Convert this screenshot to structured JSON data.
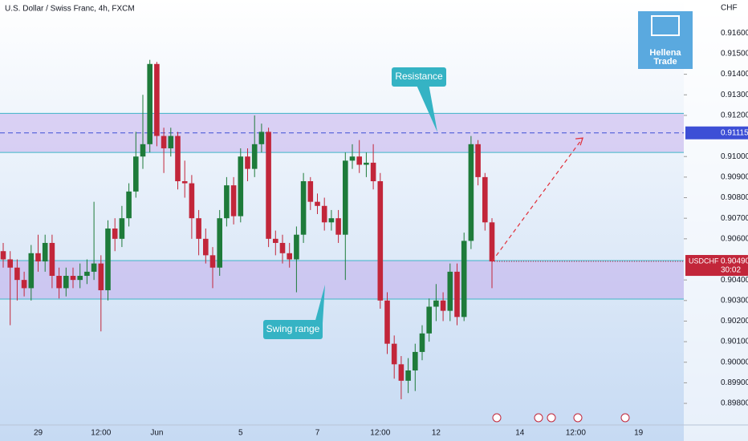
{
  "chart_data": {
    "type": "candlestick",
    "title": "U.S. Dollar / Swiss Franc, 4h, FXCM",
    "currency": "CHF",
    "logo": [
      "Hellena",
      "Trade"
    ],
    "categories": [
      null,
      null,
      null,
      null,
      null,
      "29",
      null,
      null,
      null,
      null,
      null,
      null,
      null,
      null,
      "12:00",
      null,
      null,
      null,
      null,
      null,
      null,
      null,
      "Jun",
      null,
      null,
      null,
      null,
      null,
      null,
      null,
      null,
      null,
      null,
      null,
      "5",
      null,
      null,
      null,
      null,
      null,
      null,
      null,
      null,
      null,
      null,
      "7",
      null,
      null,
      null,
      null,
      null,
      null,
      null,
      null,
      "12:00",
      null,
      null,
      null,
      null,
      null,
      null,
      null,
      "12",
      null,
      null,
      null,
      null,
      null,
      null,
      null,
      null,
      null,
      null,
      null,
      "14",
      null,
      null,
      null,
      null,
      null,
      null,
      null,
      "12:00",
      null,
      null,
      null,
      null,
      null,
      null,
      null,
      null,
      "19",
      null,
      null,
      null,
      null,
      null
    ],
    "series": [
      {
        "name": "USDCHF",
        "up_color": "#1e7b3a",
        "down_color": "#c2263a",
        "open": [
          0.9054,
          0.905,
          0.9046,
          0.904,
          0.9036,
          0.9053,
          0.9049,
          0.9058,
          0.9042,
          0.9036,
          0.9042,
          0.904,
          0.9042,
          0.9044,
          0.9048,
          0.9035,
          0.9065,
          0.906,
          0.907,
          0.9083,
          0.91,
          0.9106,
          0.9145,
          0.911,
          0.9104,
          0.911,
          0.9088,
          0.9087,
          0.907,
          0.906,
          0.9052,
          0.9046,
          0.907,
          0.9086,
          0.9071,
          0.91,
          0.9094,
          0.9106,
          0.9112,
          0.906,
          0.9058,
          0.9053,
          0.905,
          0.9062,
          0.9088,
          0.9078,
          0.9076,
          0.9068,
          0.907,
          0.9062,
          0.9098,
          0.91,
          0.9096,
          0.9097,
          0.9088,
          0.903,
          0.9009,
          0.8999,
          0.8991,
          0.8996,
          0.9005,
          0.9014,
          0.9027,
          0.903,
          0.9025,
          0.9044,
          0.9022,
          0.9059,
          0.9106,
          0.909,
          0.9068,
          null,
          null,
          null,
          null,
          null,
          null,
          null,
          null,
          null,
          null,
          null,
          null,
          null,
          null,
          null,
          null,
          null,
          null,
          null,
          null,
          null,
          null,
          null,
          null,
          null,
          null
        ],
        "high": [
          0.9058,
          0.9054,
          0.905,
          0.9044,
          0.9057,
          0.9062,
          0.9062,
          0.9062,
          0.9046,
          0.9046,
          0.9046,
          0.9048,
          0.905,
          0.9078,
          0.9052,
          0.9069,
          0.907,
          0.9076,
          0.9087,
          0.9112,
          0.913,
          0.9147,
          0.9146,
          0.9114,
          0.9114,
          0.9112,
          0.9098,
          0.9091,
          0.9074,
          0.9065,
          0.9056,
          0.9074,
          0.909,
          0.909,
          0.9104,
          0.9104,
          0.912,
          0.9116,
          0.9114,
          0.9064,
          0.9062,
          0.9058,
          0.9066,
          0.9092,
          0.909,
          0.9082,
          0.908,
          0.9074,
          0.9074,
          0.9102,
          0.9106,
          0.9108,
          0.9102,
          0.9106,
          0.9092,
          0.9034,
          0.9013,
          0.9003,
          0.9002,
          0.9009,
          0.9018,
          0.9031,
          0.9038,
          0.9034,
          0.9048,
          0.9048,
          0.9063,
          0.911,
          0.9108,
          0.9092,
          0.907,
          null,
          null,
          null,
          null,
          null,
          null,
          null,
          null,
          null,
          null,
          null,
          null,
          null,
          null,
          null,
          null,
          null,
          null,
          null,
          null,
          null,
          null,
          null,
          null,
          null,
          null
        ],
        "low": [
          0.9046,
          0.9018,
          0.903,
          0.9032,
          0.903,
          0.9044,
          0.9044,
          0.9036,
          0.9031,
          0.9032,
          0.9036,
          0.9036,
          0.9038,
          0.904,
          0.9015,
          0.903,
          0.9054,
          0.9056,
          0.9066,
          0.908,
          0.9094,
          0.9102,
          0.9105,
          0.9092,
          0.91,
          0.9084,
          0.908,
          0.906,
          0.9052,
          0.9048,
          0.9036,
          0.9042,
          0.9066,
          0.9067,
          0.9068,
          0.9088,
          0.909,
          0.9102,
          0.9056,
          0.9052,
          0.9048,
          0.9046,
          0.9034,
          0.9058,
          0.9074,
          0.9072,
          0.9064,
          0.9064,
          0.9058,
          0.904,
          0.9094,
          0.9092,
          0.909,
          0.9084,
          0.9026,
          0.9004,
          0.8992,
          0.8982,
          0.8985,
          0.8986,
          0.9001,
          0.901,
          0.902,
          0.902,
          0.902,
          0.9018,
          0.902,
          0.9055,
          0.9086,
          0.9064,
          0.9036,
          null,
          null,
          null,
          null,
          null,
          null,
          null,
          null,
          null,
          null,
          null,
          null,
          null,
          null,
          null,
          null,
          null,
          null,
          null,
          null,
          null,
          null,
          null,
          null,
          null,
          null
        ],
        "close": [
          0.905,
          0.9046,
          0.904,
          0.9036,
          0.9053,
          0.9049,
          0.9058,
          0.9042,
          0.9036,
          0.9042,
          0.904,
          0.9042,
          0.9044,
          0.9048,
          0.9035,
          0.9065,
          0.906,
          0.907,
          0.9083,
          0.91,
          0.9106,
          0.9145,
          0.911,
          0.9104,
          0.911,
          0.9088,
          0.9087,
          0.907,
          0.906,
          0.9052,
          0.9046,
          0.907,
          0.9086,
          0.9071,
          0.91,
          0.9094,
          0.9106,
          0.9112,
          0.906,
          0.9058,
          0.9053,
          0.905,
          0.9062,
          0.9088,
          0.9078,
          0.9076,
          0.9068,
          0.907,
          0.9062,
          0.9098,
          0.91,
          0.9096,
          0.9097,
          0.9088,
          0.903,
          0.9009,
          0.8999,
          0.8991,
          0.8996,
          0.9005,
          0.9014,
          0.9027,
          0.903,
          0.9025,
          0.9044,
          0.9022,
          0.9059,
          0.9106,
          0.909,
          0.9068,
          0.9049,
          null,
          null,
          null,
          null,
          null,
          null,
          null,
          null,
          null,
          null,
          null,
          null,
          null,
          null,
          null,
          null,
          null,
          null,
          null,
          null,
          null,
          null,
          null,
          null,
          null,
          null
        ]
      }
    ],
    "ylim": [
      0.89695,
      0.91761
    ],
    "yticks": [
      {
        "value": 0.898,
        "label": "0.89800"
      },
      {
        "value": 0.899,
        "label": "0.89900"
      },
      {
        "value": 0.9,
        "label": "0.90000"
      },
      {
        "value": 0.901,
        "label": "0.90100"
      },
      {
        "value": 0.902,
        "label": "0.90200"
      },
      {
        "value": 0.903,
        "label": "0.90300"
      },
      {
        "value": 0.904,
        "label": "0.90400"
      },
      {
        "value": 0.906,
        "label": "0.90600"
      },
      {
        "value": 0.907,
        "label": "0.90700"
      },
      {
        "value": 0.908,
        "label": "0.90800"
      },
      {
        "value": 0.909,
        "label": "0.90900"
      },
      {
        "value": 0.91,
        "label": "0.91000"
      },
      {
        "value": 0.912,
        "label": "0.91200"
      },
      {
        "value": 0.913,
        "label": "0.91300"
      },
      {
        "value": 0.914,
        "label": "0.91400"
      },
      {
        "value": 0.915,
        "label": "0.91500"
      },
      {
        "value": 0.916,
        "label": "0.91600"
      }
    ],
    "zones": [
      {
        "name": "Resistance",
        "from": 0.9102,
        "to": 0.9121
      },
      {
        "name": "Swing range",
        "from": 0.90307,
        "to": 0.90494
      }
    ],
    "resistance_line": {
      "value": 0.91115,
      "label": "0.91115"
    },
    "last_price": {
      "symbol": "USDCHF",
      "value": 0.9049,
      "label": "0.90490",
      "countdown": "30:02"
    },
    "projection": {
      "from": [
        70,
        0.9049
      ],
      "to": [
        83,
        0.9109
      ]
    }
  }
}
